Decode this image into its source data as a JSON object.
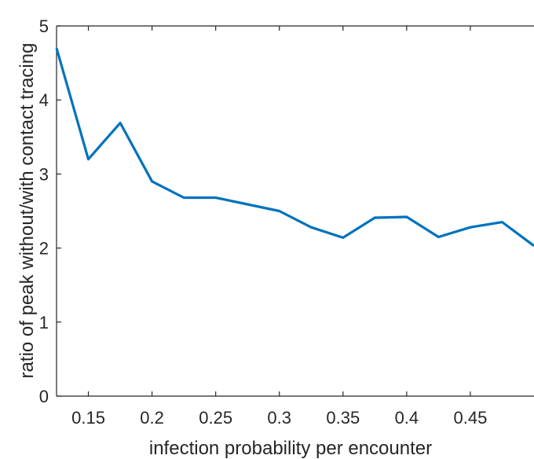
{
  "chart_data": {
    "type": "line",
    "title": "",
    "xlabel": "infection probability per encounter",
    "ylabel": "ratio of peak without/with contact tracing",
    "xlim": [
      0.125,
      0.5
    ],
    "ylim": [
      0,
      5
    ],
    "xticks": [
      0.15,
      0.2,
      0.25,
      0.3,
      0.35,
      0.4,
      0.45
    ],
    "xtick_labels": [
      "0.15",
      "0.2",
      "0.25",
      "0.3",
      "0.35",
      "0.4",
      "0.45"
    ],
    "yticks": [
      0,
      1,
      2,
      3,
      4,
      5
    ],
    "ytick_labels": [
      "0",
      "1",
      "2",
      "3",
      "4",
      "5"
    ],
    "grid": false,
    "legend": "none",
    "series": [
      {
        "color": "#0072BD",
        "x": [
          0.125,
          0.15,
          0.175,
          0.2,
          0.225,
          0.25,
          0.275,
          0.3,
          0.325,
          0.35,
          0.375,
          0.4,
          0.425,
          0.45,
          0.475,
          0.5
        ],
        "y": [
          4.7,
          3.2,
          3.69,
          2.9,
          2.68,
          2.68,
          2.59,
          2.5,
          2.28,
          2.14,
          2.41,
          2.42,
          2.15,
          2.28,
          2.35,
          2.03
        ]
      }
    ]
  }
}
